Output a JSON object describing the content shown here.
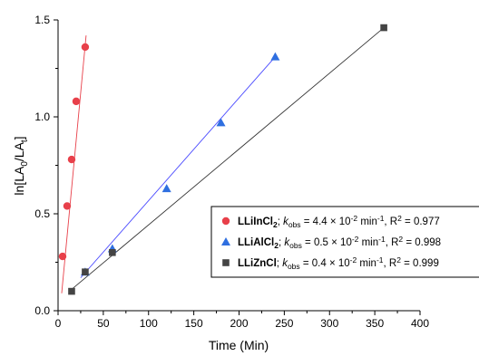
{
  "chart_data": {
    "type": "scatter",
    "xlabel": "Time (Min)",
    "ylabel_main": "ln[LA",
    "ylabel_sub0": "0",
    "ylabel_mid": "/LA",
    "ylabel_subt": "t",
    "ylabel_end": "]",
    "xlim": [
      0,
      400
    ],
    "ylim": [
      0,
      1.5
    ],
    "x_ticks": [
      0,
      50,
      100,
      150,
      200,
      250,
      300,
      350,
      400
    ],
    "x_tick_labels": [
      "0",
      "50",
      "100",
      "150",
      "200",
      "250",
      "300",
      "350",
      "400"
    ],
    "y_ticks": [
      0,
      0.5,
      1.0,
      1.5
    ],
    "y_tick_labels": [
      "0.0",
      "0.5",
      "1.0",
      "1.5"
    ],
    "legend_position": "right",
    "series": [
      {
        "name": "LLiInCl",
        "name_sub": "2",
        "k_label": "k",
        "k_sub": "obs",
        "k_value": " = 4.4 × 10",
        "k_exp": "-2",
        "k_unit": " min",
        "k_unit_exp": "-1",
        "r2": ", R",
        "r2_exp": "2",
        "r2_value": " = 0.977",
        "marker": "circle",
        "color": "#e8404a",
        "line_color": "#e8404a",
        "x": [
          5,
          10,
          15,
          20,
          30
        ],
        "y": [
          0.28,
          0.54,
          0.78,
          1.08,
          1.36
        ],
        "fit_x": [
          4,
          31
        ],
        "fit_y": [
          0.09,
          1.42
        ]
      },
      {
        "name": "LLiAlCl",
        "name_sub": "2",
        "k_label": "k",
        "k_sub": "obs",
        "k_value": " = 0.5 × 10",
        "k_exp": "-2",
        "k_unit": " min",
        "k_unit_exp": "-1",
        "r2": ", R",
        "r2_exp": "2",
        "r2_value": " = 0.998",
        "marker": "triangle",
        "color": "#2f6fe0",
        "line_color": "#4a4aff",
        "x": [
          30,
          60,
          120,
          180,
          240
        ],
        "y": [
          0.2,
          0.32,
          0.63,
          0.97,
          1.31
        ],
        "fit_x": [
          25,
          240
        ],
        "fit_y": [
          0.17,
          1.31
        ]
      },
      {
        "name": "LLiZnCl",
        "name_sub": "",
        "k_label": "k",
        "k_sub": "obs",
        "k_value": " = 0.4 × 10",
        "k_exp": "-2",
        "k_unit": " min",
        "k_unit_exp": "-1",
        "r2": ", R",
        "r2_exp": "2",
        "r2_value": " = 0.999",
        "marker": "square",
        "color": "#444444",
        "line_color": "#333333",
        "x": [
          15,
          30,
          60,
          360
        ],
        "y": [
          0.1,
          0.2,
          0.3,
          1.46
        ],
        "fit_x": [
          15,
          360
        ],
        "fit_y": [
          0.11,
          1.46
        ]
      }
    ]
  }
}
